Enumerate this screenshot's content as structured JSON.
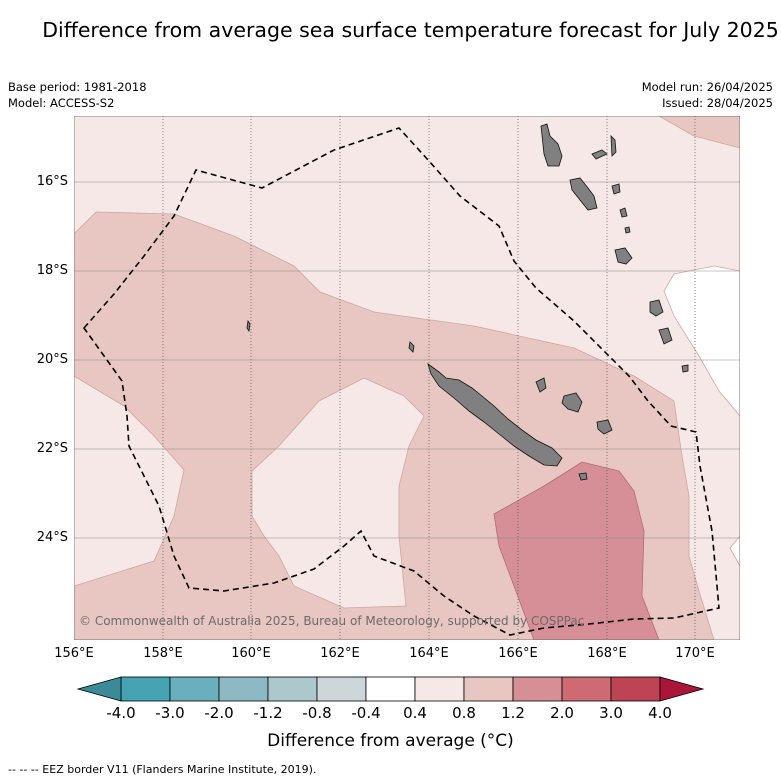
{
  "title": "Difference from average sea surface temperature forecast for July 2025",
  "base_period": "Base period: 1981-2018",
  "model": "Model: ACCESS-S2",
  "model_run": "Model run: 26/04/2025",
  "issued": "Issued: 28/04/2025",
  "copyright": "© Commonwealth of Australia 2025, Bureau of Meteorology, supported by COSPPac",
  "map": {
    "lat_labels": [
      "16°S",
      "18°S",
      "20°S",
      "22°S",
      "24°S"
    ],
    "lon_labels": [
      "156°E",
      "158°E",
      "160°E",
      "162°E",
      "164°E",
      "166°E",
      "168°E",
      "170°E"
    ]
  },
  "colorbar": {
    "title": "Difference from average (°C)",
    "ticks": [
      "-4.0",
      "-3.0",
      "-2.0",
      "-1.2",
      "-0.8",
      "-0.4",
      "0.4",
      "0.8",
      "1.2",
      "2.0",
      "3.0",
      "4.0"
    ],
    "colors": {
      "below_min": "#3b8a97",
      "bins": [
        "#46a3b3",
        "#6aafbd",
        "#8db9c4",
        "#adc8cc",
        "#cdd7d9",
        "#ffffff",
        "#f5e8e6",
        "#e8c6c1",
        "#d68f96",
        "#cd6a74",
        "#be4454"
      ],
      "above_max": "#a9163a"
    }
  },
  "legend": "-- -- -- EEZ border V11 (Flanders Marine Institute, 2019)."
}
